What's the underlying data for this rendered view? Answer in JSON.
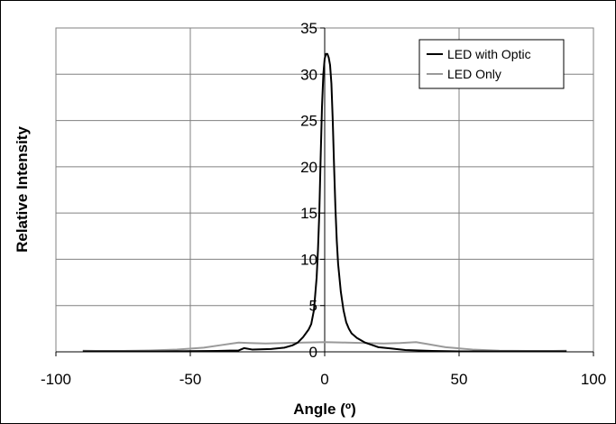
{
  "chart_data": {
    "type": "line",
    "title": "",
    "xlabel": "Angle (º)",
    "ylabel": "Relative Intensity",
    "xlim": [
      -100,
      100
    ],
    "ylim": [
      0,
      35
    ],
    "x_ticks": [
      -100,
      -50,
      0,
      50,
      100
    ],
    "y_ticks": [
      0,
      5,
      10,
      15,
      20,
      25,
      30,
      35
    ],
    "grid": true,
    "legend_position": "top-right",
    "series": [
      {
        "name": "LED with Optic",
        "color": "#000000",
        "points": [
          [
            -90,
            0.05
          ],
          [
            -60,
            0.05
          ],
          [
            -40,
            0.1
          ],
          [
            -32,
            0.15
          ],
          [
            -30,
            0.4
          ],
          [
            -27,
            0.25
          ],
          [
            -20,
            0.3
          ],
          [
            -15,
            0.45
          ],
          [
            -12,
            0.7
          ],
          [
            -10,
            1.0
          ],
          [
            -8,
            1.6
          ],
          [
            -6,
            2.4
          ],
          [
            -5,
            3.0
          ],
          [
            -4,
            4.5
          ],
          [
            -3,
            8.0
          ],
          [
            -2.5,
            11.0
          ],
          [
            -2,
            15.0
          ],
          [
            -1.5,
            21.0
          ],
          [
            -1,
            26.5
          ],
          [
            -0.5,
            30.0
          ],
          [
            0,
            31.7
          ],
          [
            0.5,
            32.2
          ],
          [
            1,
            32.2
          ],
          [
            1.5,
            31.8
          ],
          [
            2,
            31.0
          ],
          [
            2.5,
            29.0
          ],
          [
            3,
            25.0
          ],
          [
            3.5,
            20.0
          ],
          [
            4,
            15.5
          ],
          [
            4.5,
            12.0
          ],
          [
            5,
            9.5
          ],
          [
            6,
            6.5
          ],
          [
            7,
            4.5
          ],
          [
            8,
            3.2
          ],
          [
            9,
            2.5
          ],
          [
            10,
            2.0
          ],
          [
            12,
            1.5
          ],
          [
            15,
            1.0
          ],
          [
            18,
            0.7
          ],
          [
            20,
            0.5
          ],
          [
            25,
            0.35
          ],
          [
            30,
            0.2
          ],
          [
            40,
            0.1
          ],
          [
            50,
            0.05
          ],
          [
            60,
            0.05
          ],
          [
            90,
            0.05
          ]
        ]
      },
      {
        "name": "LED Only",
        "color": "#9a9a9a",
        "points": [
          [
            -90,
            0.12
          ],
          [
            -85,
            0.1
          ],
          [
            -75,
            0.1
          ],
          [
            -65,
            0.15
          ],
          [
            -55,
            0.25
          ],
          [
            -45,
            0.45
          ],
          [
            -38,
            0.75
          ],
          [
            -32,
            1.0
          ],
          [
            -28,
            0.95
          ],
          [
            -22,
            0.9
          ],
          [
            -15,
            0.95
          ],
          [
            -8,
            1.0
          ],
          [
            0,
            1.05
          ],
          [
            8,
            1.0
          ],
          [
            15,
            0.95
          ],
          [
            22,
            0.9
          ],
          [
            28,
            0.95
          ],
          [
            34,
            1.05
          ],
          [
            38,
            0.85
          ],
          [
            45,
            0.5
          ],
          [
            55,
            0.25
          ],
          [
            65,
            0.12
          ],
          [
            75,
            0.1
          ],
          [
            85,
            0.1
          ],
          [
            90,
            0.12
          ]
        ]
      }
    ]
  }
}
